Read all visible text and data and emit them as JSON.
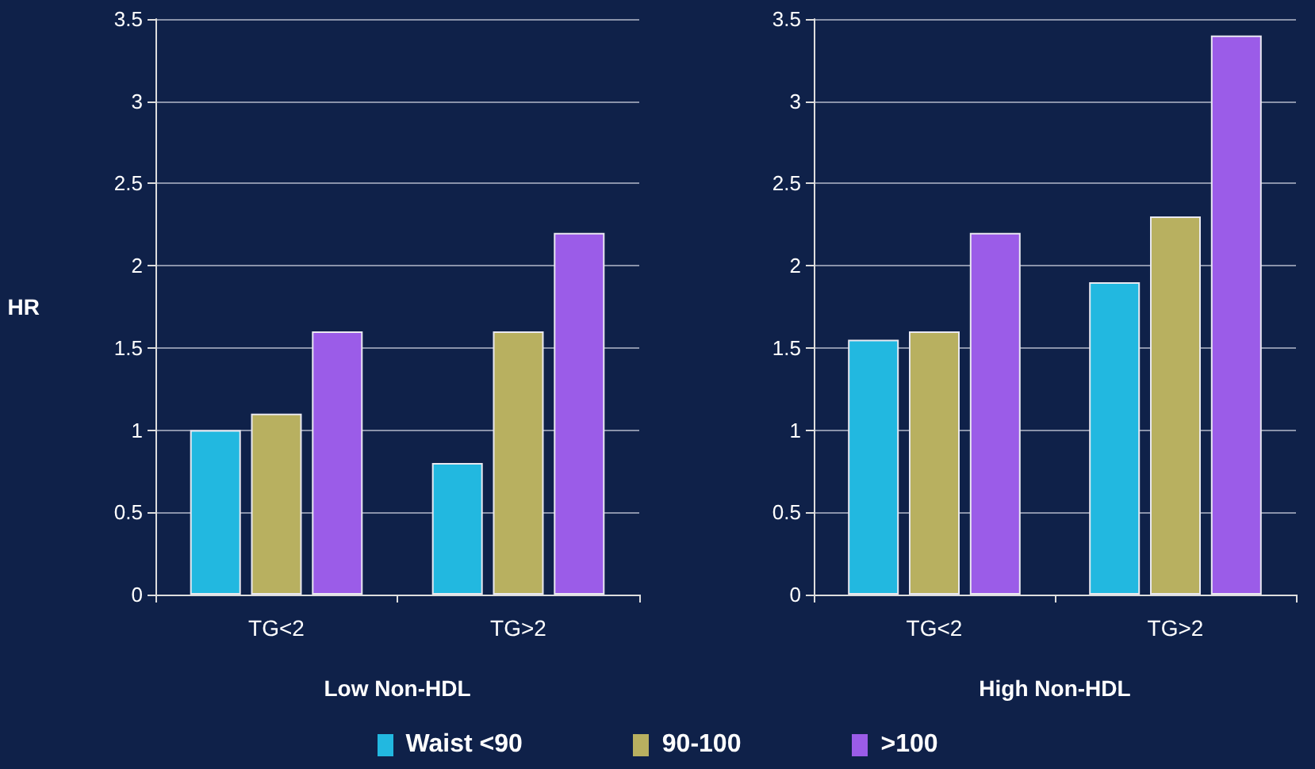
{
  "chart_data": [
    {
      "type": "bar",
      "xlabel": "Low Non-HDL",
      "ylabel": "HR",
      "categories": [
        "TG<2",
        "TG>2"
      ],
      "series": [
        {
          "name": "Waist <90",
          "color": "#22b8e0",
          "values": [
            1.0,
            0.8
          ]
        },
        {
          "name": "90-100",
          "color": "#b8b060",
          "values": [
            1.1,
            1.6
          ]
        },
        {
          "name": ">100",
          "color": "#9b5ce8",
          "values": [
            1.6,
            2.2
          ]
        }
      ],
      "ylim": [
        0,
        3.5
      ],
      "yticks": [
        0,
        0.5,
        1,
        1.5,
        2,
        2.5,
        3,
        3.5
      ],
      "grid": "y",
      "legend": "bottom"
    },
    {
      "type": "bar",
      "xlabel": "High Non-HDL",
      "categories": [
        "TG<2",
        "TG>2"
      ],
      "series": [
        {
          "color": "#22b8e0",
          "values": [
            1.55,
            1.9
          ]
        },
        {
          "color": "#b8b060",
          "values": [
            1.6,
            2.3
          ]
        },
        {
          "color": "#9b5ce8",
          "values": [
            2.2,
            3.4
          ]
        }
      ],
      "ylim": [
        0,
        3.5
      ],
      "yticks": [
        0,
        0.5,
        1,
        1.5,
        2,
        2.5,
        3,
        3.5
      ],
      "grid": "y"
    }
  ]
}
